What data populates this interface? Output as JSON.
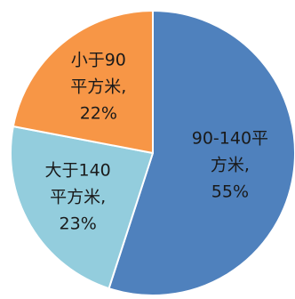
{
  "chart_data": {
    "type": "pie",
    "title": "",
    "start": "top",
    "direction": "clockwise",
    "legend": "none",
    "slices": [
      {
        "label": "90-140平方米",
        "value": 55,
        "percent_label": "55%",
        "label_lines": [
          "90-140平",
          "方米,",
          "55%"
        ],
        "color": "#4f81bd"
      },
      {
        "label": "大于140平方米",
        "value": 23,
        "percent_label": "23%",
        "label_lines": [
          "大于140",
          "平方米,",
          "23%"
        ],
        "color": "#93cddd"
      },
      {
        "label": "小于90平方米",
        "value": 22,
        "percent_label": "22%",
        "label_lines": [
          "小于90",
          "平方米,",
          "22%"
        ],
        "color": "#f79646"
      }
    ]
  }
}
